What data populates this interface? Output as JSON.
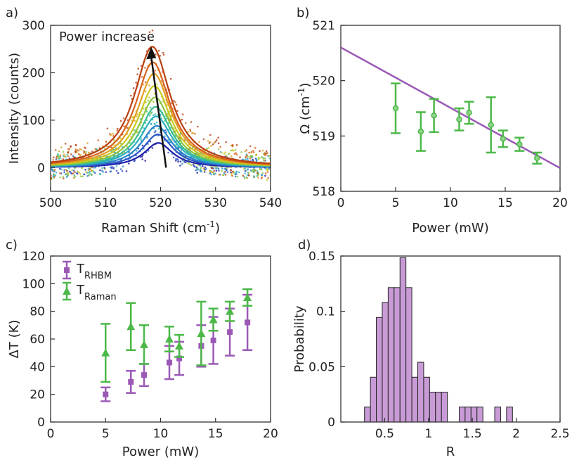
{
  "colors": {
    "purple": "#9b59b6",
    "purple_fill": "#c89bd6",
    "green": "#4cb848",
    "arrow": "#111111",
    "spectrum_series": [
      "#1f1fa8",
      "#2a56c8",
      "#2a86c8",
      "#28b0c0",
      "#3cbf8c",
      "#8cc63f",
      "#c8c81e",
      "#e0a020",
      "#d8621e",
      "#b83e10"
    ]
  },
  "chart_data": [
    {
      "panel_label": "a)",
      "type": "line",
      "xlabel": "Raman Shift (cm",
      "xlabel_sup": "-1",
      "xlabel_tail": ")",
      "ylabel": "Intensity (counts)",
      "xlim": [
        500,
        540
      ],
      "ylim": [
        -50,
        300
      ],
      "xticks": [
        500,
        510,
        520,
        530,
        540
      ],
      "yticks": [
        0,
        100,
        200,
        300
      ],
      "annotation": "Power increase",
      "arrow": {
        "from": [
          521,
          0
        ],
        "to": [
          518.3,
          255
        ]
      },
      "series": [
        {
          "peak": 519.6,
          "amplitude": 52,
          "width": 3.2
        },
        {
          "peak": 519.5,
          "amplitude": 70,
          "width": 3.3
        },
        {
          "peak": 519.3,
          "amplitude": 88,
          "width": 3.4
        },
        {
          "peak": 519.2,
          "amplitude": 108,
          "width": 3.5
        },
        {
          "peak": 519.1,
          "amplitude": 128,
          "width": 3.5
        },
        {
          "peak": 519.0,
          "amplitude": 148,
          "width": 3.6
        },
        {
          "peak": 518.9,
          "amplitude": 172,
          "width": 3.7
        },
        {
          "peak": 518.8,
          "amplitude": 198,
          "width": 3.8
        },
        {
          "peak": 518.6,
          "amplitude": 222,
          "width": 3.9
        },
        {
          "peak": 518.5,
          "amplitude": 255,
          "width": 4.0
        }
      ]
    },
    {
      "panel_label": "b)",
      "type": "scatter",
      "xlabel": "Power (mW)",
      "ylabel": "Ω (cm",
      "ylabel_sup": "-1",
      "ylabel_tail": ")",
      "xlim": [
        0,
        20
      ],
      "ylim": [
        518,
        521
      ],
      "xticks": [
        0,
        5,
        10,
        15,
        20
      ],
      "yticks": [
        518,
        519,
        520,
        521
      ],
      "points": [
        {
          "x": 5.0,
          "y": 519.5,
          "err": 0.45
        },
        {
          "x": 7.3,
          "y": 519.08,
          "err": 0.35
        },
        {
          "x": 8.5,
          "y": 519.37,
          "err": 0.3
        },
        {
          "x": 10.8,
          "y": 519.3,
          "err": 0.2
        },
        {
          "x": 11.7,
          "y": 519.42,
          "err": 0.2
        },
        {
          "x": 13.7,
          "y": 519.2,
          "err": 0.5
        },
        {
          "x": 14.8,
          "y": 518.95,
          "err": 0.15
        },
        {
          "x": 16.3,
          "y": 518.85,
          "err": 0.12
        },
        {
          "x": 17.9,
          "y": 518.6,
          "err": 0.1
        }
      ],
      "fit_line": {
        "x": [
          0,
          20
        ],
        "y": [
          520.6,
          518.42
        ]
      }
    },
    {
      "panel_label": "c)",
      "type": "scatter",
      "xlabel": "Power (mW)",
      "ylabel": "ΔT (K)",
      "xlim": [
        0,
        20
      ],
      "ylim": [
        0,
        120
      ],
      "xticks": [
        0,
        5,
        10,
        15,
        20
      ],
      "yticks": [
        0,
        20,
        40,
        60,
        80,
        100,
        120
      ],
      "series": [
        {
          "name": "T",
          "name_sub": "RHBM",
          "marker": "square",
          "points": [
            {
              "x": 5.0,
              "y": 20,
              "err": 5
            },
            {
              "x": 7.3,
              "y": 29,
              "err": 8
            },
            {
              "x": 8.5,
              "y": 34,
              "err": 8
            },
            {
              "x": 10.8,
              "y": 43,
              "err": 12
            },
            {
              "x": 11.7,
              "y": 46,
              "err": 12
            },
            {
              "x": 13.7,
              "y": 55,
              "err": 15
            },
            {
              "x": 14.8,
              "y": 59,
              "err": 17
            },
            {
              "x": 16.3,
              "y": 65,
              "err": 17
            },
            {
              "x": 17.9,
              "y": 72,
              "err": 20
            }
          ]
        },
        {
          "name": "T",
          "name_sub": "Raman",
          "marker": "triangle",
          "points": [
            {
              "x": 5.0,
              "y": 50,
              "err": 21
            },
            {
              "x": 7.3,
              "y": 69,
              "err": 17
            },
            {
              "x": 8.5,
              "y": 56,
              "err": 14
            },
            {
              "x": 10.8,
              "y": 60,
              "err": 9
            },
            {
              "x": 11.7,
              "y": 55,
              "err": 8
            },
            {
              "x": 13.7,
              "y": 64,
              "err": 23
            },
            {
              "x": 14.8,
              "y": 74,
              "err": 8
            },
            {
              "x": 16.3,
              "y": 80,
              "err": 7
            },
            {
              "x": 17.9,
              "y": 90,
              "err": 6
            }
          ]
        }
      ]
    },
    {
      "panel_label": "d)",
      "type": "bar",
      "xlabel": "R",
      "ylabel": "Probability",
      "xlim": [
        0,
        2.5
      ],
      "ylim": [
        0,
        0.15
      ],
      "xticks": [
        0.5,
        1,
        1.5,
        2,
        2.5
      ],
      "yticks": [
        0,
        0.05,
        0.1,
        0.15
      ],
      "bin_width": 0.0675,
      "bin_start": 0.27,
      "values": [
        0.0135,
        0.0405,
        0.0945,
        0.108,
        0.1215,
        0.1215,
        0.1485,
        0.1215,
        0.0405,
        0.054,
        0.0405,
        0.027,
        0.027,
        0.027,
        0,
        0,
        0.0135,
        0.0135,
        0.0135,
        0.0135,
        0,
        0,
        0.0135,
        0,
        0.0135
      ]
    }
  ]
}
